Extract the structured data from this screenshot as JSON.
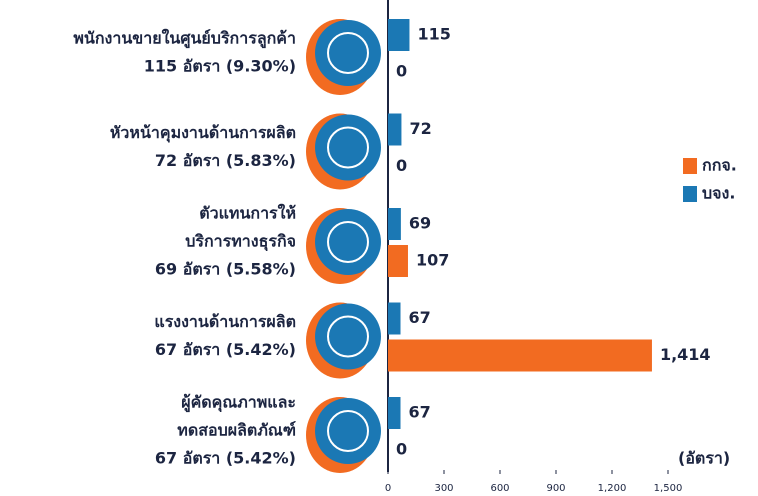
{
  "chart_data": {
    "type": "bar",
    "orientation": "horizontal",
    "categories": [
      [
        "พนักงานขายในศูนย์บริการลูกค้า",
        "115 อัตรา (9.30%)"
      ],
      [
        "หัวหน้าคุมงานด้านการผลิต",
        "72 อัตรา (5.83%)"
      ],
      [
        "ตัวแทนการให้",
        "บริการทางธุรกิจ",
        "69 อัตรา (5.58%)"
      ],
      [
        "แรงงานด้านการผลิต",
        "67 อัตรา (5.42%)"
      ],
      [
        "ผู้คัดคุณภาพและ",
        "ทดสอบผลิตภัณฑ์",
        "67 อัตรา (5.42%)"
      ]
    ],
    "series": [
      {
        "name": "กกจ.",
        "color": "#f26b21",
        "values": [
          0,
          0,
          107,
          1414,
          0
        ],
        "value_labels": [
          "0",
          "0",
          "107",
          "1,414",
          "0"
        ]
      },
      {
        "name": "บจง.",
        "color": "#1b78b4",
        "values": [
          115,
          72,
          69,
          67,
          67
        ]
      }
    ],
    "xlim": [
      0,
      1500
    ],
    "xticks": [
      0,
      300,
      600,
      900,
      {
        "value": 1200,
        "label": "1,200"
      },
      {
        "value": 1500,
        "label": "1,500"
      }
    ],
    "xlabel": "(อัตรา)"
  }
}
